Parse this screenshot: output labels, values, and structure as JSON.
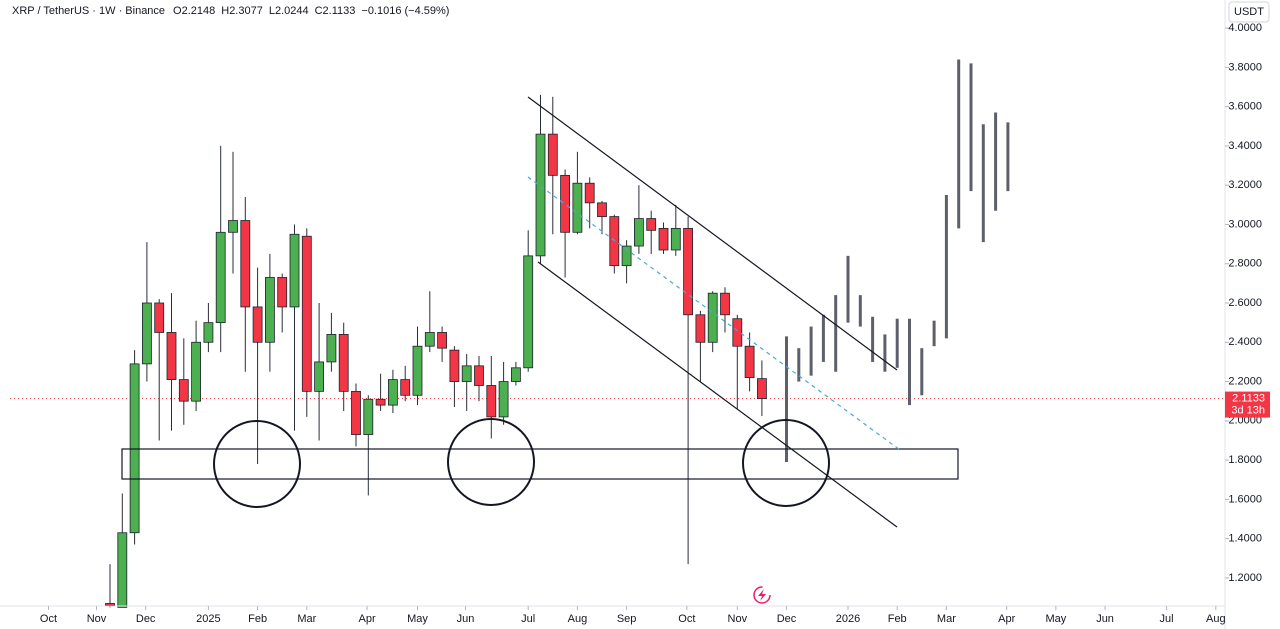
{
  "chart_data": {
    "type": "candlestick",
    "title": "XRP / TetherUS · 1W · Binance",
    "ohlc_legend": [
      "O2.2148",
      "H2.3077",
      "L2.0244",
      "C2.1133",
      "−0.1016 (−4.59%)"
    ],
    "currency": "USDT",
    "countdown": "3d 13h",
    "last_price": {
      "value": 2.1133,
      "label": "2.1133"
    },
    "up_color": "#4caf50",
    "down_color": "#f23645",
    "x": [
      0,
      1,
      2,
      3,
      4,
      5,
      6,
      7,
      8,
      9,
      10,
      11,
      12,
      13,
      14,
      15,
      16,
      17,
      18,
      19,
      20,
      21,
      22,
      23,
      24,
      25,
      26,
      27,
      28,
      29,
      30,
      31,
      32,
      33,
      34,
      35,
      36,
      37,
      38,
      39,
      40,
      41,
      42,
      43,
      44,
      45,
      46,
      47,
      48,
      49,
      50,
      51,
      52,
      53
    ],
    "open": [
      1.07,
      1.05,
      1.43,
      2.29,
      2.6,
      2.45,
      2.21,
      2.1,
      2.4,
      2.5,
      2.96,
      3.02,
      2.58,
      2.4,
      2.73,
      2.58,
      2.94,
      2.15,
      2.3,
      2.44,
      2.15,
      1.93,
      2.11,
      2.08,
      2.21,
      2.13,
      2.38,
      2.45,
      2.36,
      2.2,
      2.28,
      2.18,
      2.02,
      2.2,
      2.27,
      2.84,
      3.46,
      3.25,
      2.96,
      3.21,
      3.11,
      3.04,
      2.79,
      2.89,
      3.03,
      2.98,
      2.87,
      2.98,
      2.54,
      2.4,
      2.65,
      2.52,
      2.38,
      2.2148
    ],
    "high": [
      1.27,
      1.63,
      2.36,
      2.91,
      2.62,
      2.65,
      2.42,
      2.51,
      2.6,
      3.4,
      3.37,
      3.14,
      2.78,
      2.85,
      2.75,
      3.0,
      2.98,
      2.6,
      2.55,
      2.5,
      2.19,
      2.13,
      2.24,
      2.26,
      2.28,
      2.48,
      2.66,
      2.48,
      2.38,
      2.34,
      2.33,
      2.33,
      2.3,
      2.3,
      2.97,
      3.66,
      3.65,
      3.28,
      3.37,
      3.24,
      3.12,
      3.05,
      2.92,
      3.2,
      3.07,
      3.01,
      3.1,
      3.04,
      2.56,
      2.66,
      2.68,
      2.54,
      2.45,
      2.3077
    ],
    "low": [
      1.05,
      1.05,
      1.37,
      2.2,
      1.9,
      1.95,
      1.98,
      2.05,
      2.35,
      2.35,
      2.75,
      2.25,
      1.78,
      2.25,
      2.45,
      1.95,
      2.02,
      1.9,
      2.25,
      2.05,
      1.87,
      1.62,
      2.05,
      2.04,
      2.1,
      2.08,
      2.35,
      2.3,
      2.07,
      2.05,
      2.1,
      1.91,
      1.98,
      2.18,
      2.25,
      2.8,
      2.95,
      2.73,
      2.95,
      2.98,
      2.95,
      2.75,
      2.7,
      2.85,
      2.85,
      2.85,
      2.84,
      1.27,
      2.2,
      2.35,
      2.45,
      2.06,
      2.15,
      2.0244
    ],
    "close": [
      1.06,
      1.43,
      2.29,
      2.6,
      2.45,
      2.21,
      2.1,
      2.4,
      2.5,
      2.96,
      3.02,
      2.58,
      2.4,
      2.73,
      2.58,
      2.95,
      2.15,
      2.3,
      2.44,
      2.15,
      1.93,
      2.11,
      2.08,
      2.21,
      2.13,
      2.38,
      2.45,
      2.37,
      2.2,
      2.28,
      2.18,
      2.02,
      2.2,
      2.27,
      2.84,
      3.46,
      3.25,
      2.96,
      3.21,
      3.11,
      3.04,
      2.79,
      2.89,
      3.03,
      2.97,
      2.87,
      2.98,
      2.54,
      2.4,
      2.65,
      2.54,
      2.38,
      2.22,
      2.1133
    ],
    "projection": {
      "color": "#5d606b",
      "x": [
        55,
        56,
        57,
        58,
        59,
        60,
        61,
        62,
        63,
        64,
        65,
        66,
        67,
        68,
        69,
        70,
        71,
        72,
        73
      ],
      "high": [
        2.43,
        2.37,
        2.48,
        2.54,
        2.64,
        2.84,
        2.64,
        2.53,
        2.44,
        2.52,
        2.52,
        2.37,
        2.51,
        3.15,
        3.84,
        3.82,
        3.51,
        3.57,
        3.52
      ],
      "low": [
        1.79,
        2.2,
        2.23,
        2.3,
        2.25,
        2.5,
        2.48,
        2.3,
        2.25,
        2.27,
        2.08,
        2.13,
        2.38,
        2.42,
        2.98,
        3.17,
        2.91,
        3.07,
        3.17
      ]
    },
    "xlim": [
      -8.13,
      90.65
    ],
    "xticks": [
      {
        "value": -5.0,
        "label": "Oct"
      },
      {
        "value": -1.1,
        "label": "Nov"
      },
      {
        "value": 2.9,
        "label": "Dec"
      },
      {
        "value": 8.0,
        "label": "2025"
      },
      {
        "value": 12.0,
        "label": "Feb"
      },
      {
        "value": 16.0,
        "label": "Mar"
      },
      {
        "value": 20.9,
        "label": "Apr"
      },
      {
        "value": 25.0,
        "label": "May"
      },
      {
        "value": 28.9,
        "label": "Jun"
      },
      {
        "value": 34.0,
        "label": "Jul"
      },
      {
        "value": 38.0,
        "label": "Aug"
      },
      {
        "value": 42.0,
        "label": "Sep"
      },
      {
        "value": 46.9,
        "label": "Oct"
      },
      {
        "value": 51.0,
        "label": "Nov"
      },
      {
        "value": 55.0,
        "label": "Dec"
      },
      {
        "value": 60.0,
        "label": "2026"
      },
      {
        "value": 64.0,
        "label": "Feb"
      },
      {
        "value": 68.0,
        "label": "Mar"
      },
      {
        "value": 72.9,
        "label": "Apr"
      },
      {
        "value": 76.9,
        "label": "May"
      },
      {
        "value": 80.9,
        "label": "Jun"
      },
      {
        "value": 85.9,
        "label": "Jul"
      },
      {
        "value": 89.9,
        "label": "Aug"
      }
    ],
    "ylim": [
      1.057,
      4.143
    ],
    "yticks": [
      {
        "value": 1.2,
        "label": "1.2000"
      },
      {
        "value": 1.4,
        "label": "1.4000"
      },
      {
        "value": 1.6,
        "label": "1.6000"
      },
      {
        "value": 1.8,
        "label": "1.8000"
      },
      {
        "value": 2.0,
        "label": "2.0000"
      },
      {
        "value": 2.2,
        "label": "2.2000"
      },
      {
        "value": 2.4,
        "label": "2.4000"
      },
      {
        "value": 2.6,
        "label": "2.6000"
      },
      {
        "value": 2.8,
        "label": "2.8000"
      },
      {
        "value": 3.0,
        "label": "3.0000"
      },
      {
        "value": 3.2,
        "label": "3.2000"
      },
      {
        "value": 3.4,
        "label": "3.4000"
      },
      {
        "value": 3.6,
        "label": "3.6000"
      },
      {
        "value": 3.8,
        "label": "3.8000"
      },
      {
        "value": 4.0,
        "label": "4.0000"
      }
    ]
  }
}
